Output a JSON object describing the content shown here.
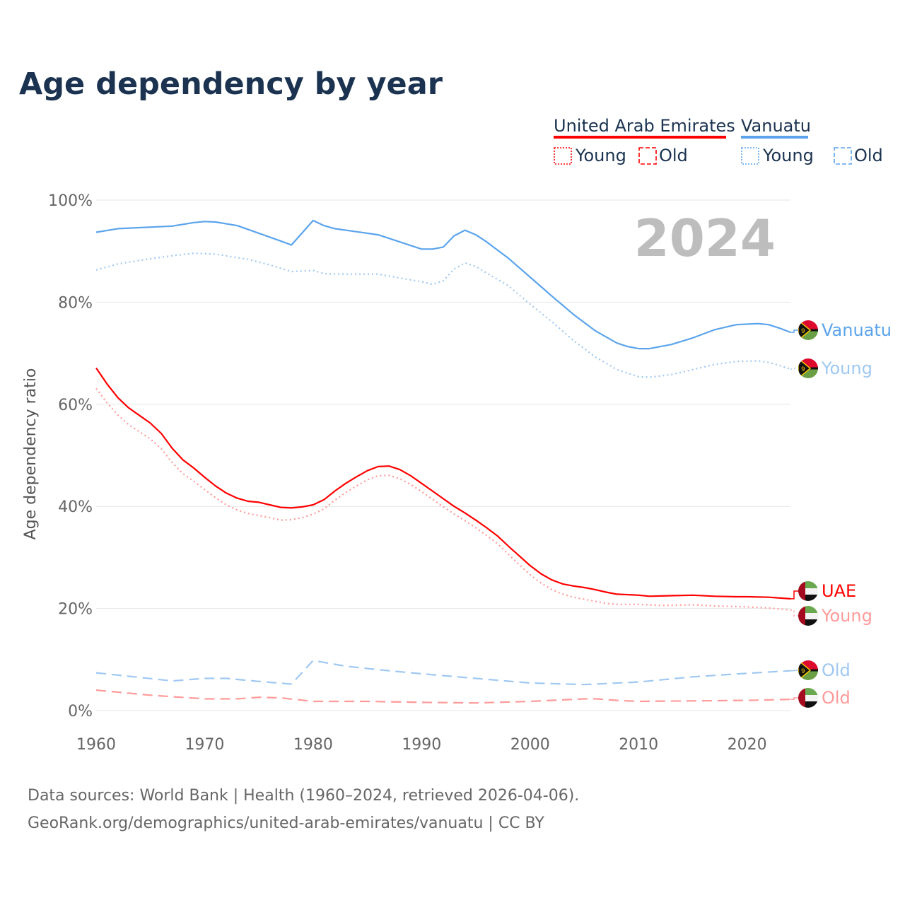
{
  "chart_data": {
    "type": "line",
    "title": "Age dependency by year",
    "ylabel": "Age dependency ratio",
    "xlabel": "",
    "xlim": [
      1960,
      2024
    ],
    "ylim": [
      0,
      100
    ],
    "x_ticks": [
      "1960",
      "1970",
      "1980",
      "1990",
      "2000",
      "2010",
      "2020"
    ],
    "y_ticks": [
      "0%",
      "20%",
      "40%",
      "60%",
      "80%",
      "100%"
    ],
    "year_label": "2024",
    "legend": {
      "placement": "top-right",
      "groups": [
        {
          "name": "United Arab Emirates",
          "color": "#ff0000",
          "young": "Young",
          "old": "Old"
        },
        {
          "name": "Vanuatu",
          "color": "#5ba4ec",
          "young": "Young",
          "old": "Old"
        }
      ]
    },
    "series": [
      {
        "name": "Vanuatu",
        "label": "Vanuatu",
        "style": "solid",
        "color": "#5ba4ec",
        "flag": "vanuatu",
        "points": [
          [
            1960,
            93.7
          ],
          [
            1962,
            94.4
          ],
          [
            1967,
            94.9
          ],
          [
            1969,
            95.6
          ],
          [
            1970,
            95.8
          ],
          [
            1971,
            95.7
          ],
          [
            1973,
            95
          ],
          [
            1975,
            93.5
          ],
          [
            1977,
            92
          ],
          [
            1978,
            91.2
          ],
          [
            1980,
            96
          ],
          [
            1981,
            95
          ],
          [
            1982,
            94.4
          ],
          [
            1986,
            93.2
          ],
          [
            1990,
            90.4
          ],
          [
            1991,
            90.4
          ],
          [
            1992,
            90.8
          ],
          [
            1993,
            93
          ],
          [
            1994,
            94.1
          ],
          [
            1995,
            93.2
          ],
          [
            1996,
            91.8
          ],
          [
            1998,
            88.6
          ],
          [
            2000,
            84.9
          ],
          [
            2002,
            81.2
          ],
          [
            2004,
            77.6
          ],
          [
            2006,
            74.4
          ],
          [
            2008,
            72
          ],
          [
            2009,
            71.3
          ],
          [
            2010,
            70.9
          ],
          [
            2011,
            70.9
          ],
          [
            2013,
            71.7
          ],
          [
            2015,
            73
          ],
          [
            2017,
            74.6
          ],
          [
            2019,
            75.6
          ],
          [
            2021,
            75.8
          ],
          [
            2022,
            75.6
          ],
          [
            2023,
            74.9
          ],
          [
            2024,
            74.1
          ]
        ]
      },
      {
        "name": "Vanuatu Young",
        "label": "Young",
        "style": "dotted",
        "color": "#9fc8f2",
        "flag": "vanuatu",
        "points": [
          [
            1960,
            86.3
          ],
          [
            1962,
            87.5
          ],
          [
            1965,
            88.5
          ],
          [
            1967,
            89.1
          ],
          [
            1969,
            89.6
          ],
          [
            1971,
            89.4
          ],
          [
            1974,
            88.4
          ],
          [
            1976,
            87.3
          ],
          [
            1978,
            86
          ],
          [
            1980,
            86.2
          ],
          [
            1981,
            85.6
          ],
          [
            1982,
            85.5
          ],
          [
            1986,
            85.5
          ],
          [
            1990,
            84
          ],
          [
            1991,
            83.5
          ],
          [
            1992,
            84.2
          ],
          [
            1993,
            86.5
          ],
          [
            1994,
            87.7
          ],
          [
            1995,
            87
          ],
          [
            1996,
            85.7
          ],
          [
            1998,
            83.2
          ],
          [
            2000,
            79.6
          ],
          [
            2002,
            76.2
          ],
          [
            2004,
            72.5
          ],
          [
            2006,
            69.3
          ],
          [
            2008,
            66.8
          ],
          [
            2010,
            65.4
          ],
          [
            2011,
            65.3
          ],
          [
            2013,
            65.8
          ],
          [
            2015,
            66.8
          ],
          [
            2017,
            67.8
          ],
          [
            2019,
            68.4
          ],
          [
            2021,
            68.5
          ],
          [
            2022,
            68.2
          ],
          [
            2023,
            67.6
          ],
          [
            2024,
            66.9
          ]
        ]
      },
      {
        "name": "Vanuatu Old",
        "label": "Old",
        "style": "dashed",
        "color": "#9fc8f2",
        "flag": "vanuatu",
        "points": [
          [
            1960,
            7.4
          ],
          [
            1964,
            6.5
          ],
          [
            1967,
            5.8
          ],
          [
            1970,
            6.3
          ],
          [
            1972,
            6.3
          ],
          [
            1975,
            5.7
          ],
          [
            1978,
            5.2
          ],
          [
            1980,
            9.8
          ],
          [
            1983,
            8.7
          ],
          [
            1986,
            8.0
          ],
          [
            1990,
            7.2
          ],
          [
            1995,
            6.3
          ],
          [
            2000,
            5.4
          ],
          [
            2005,
            5.1
          ],
          [
            2010,
            5.6
          ],
          [
            2015,
            6.6
          ],
          [
            2020,
            7.3
          ],
          [
            2024,
            7.8
          ]
        ]
      },
      {
        "name": "United Arab Emirates",
        "label": "UAE",
        "style": "solid",
        "color": "#ff0000",
        "flag": "uae",
        "points": [
          [
            1960,
            67.1
          ],
          [
            1961,
            64
          ],
          [
            1962,
            61.3
          ],
          [
            1963,
            59.3
          ],
          [
            1964,
            57.8
          ],
          [
            1965,
            56.3
          ],
          [
            1966,
            54.3
          ],
          [
            1967,
            51.4
          ],
          [
            1968,
            49.1
          ],
          [
            1969,
            47.5
          ],
          [
            1970,
            45.7
          ],
          [
            1971,
            44
          ],
          [
            1972,
            42.6
          ],
          [
            1973,
            41.6
          ],
          [
            1974,
            41
          ],
          [
            1975,
            40.8
          ],
          [
            1976,
            40.3
          ],
          [
            1977,
            39.8
          ],
          [
            1978,
            39.7
          ],
          [
            1979,
            39.9
          ],
          [
            1980,
            40.3
          ],
          [
            1981,
            41.3
          ],
          [
            1982,
            43
          ],
          [
            1983,
            44.5
          ],
          [
            1984,
            45.8
          ],
          [
            1985,
            47
          ],
          [
            1986,
            47.8
          ],
          [
            1987,
            47.9
          ],
          [
            1988,
            47.2
          ],
          [
            1989,
            46
          ],
          [
            1990,
            44.5
          ],
          [
            1991,
            43
          ],
          [
            1992,
            41.5
          ],
          [
            1993,
            40
          ],
          [
            1994,
            38.7
          ],
          [
            1995,
            37.3
          ],
          [
            1996,
            35.8
          ],
          [
            1997,
            34.2
          ],
          [
            1998,
            32.2
          ],
          [
            1999,
            30.3
          ],
          [
            2000,
            28.4
          ],
          [
            2001,
            26.8
          ],
          [
            2002,
            25.6
          ],
          [
            2003,
            24.8
          ],
          [
            2004,
            24.4
          ],
          [
            2005,
            24.1
          ],
          [
            2006,
            23.7
          ],
          [
            2007,
            23.2
          ],
          [
            2008,
            22.8
          ],
          [
            2010,
            22.6
          ],
          [
            2011,
            22.4
          ],
          [
            2013,
            22.5
          ],
          [
            2015,
            22.6
          ],
          [
            2017,
            22.4
          ],
          [
            2019,
            22.3
          ],
          [
            2020,
            22.3
          ],
          [
            2022,
            22.2
          ],
          [
            2024,
            21.9
          ]
        ]
      },
      {
        "name": "United Arab Emirates Young",
        "label": "Young",
        "style": "dotted",
        "color": "#ff9a9a",
        "flag": "uae",
        "points": [
          [
            1960,
            63.1
          ],
          [
            1961,
            60.3
          ],
          [
            1962,
            57.9
          ],
          [
            1963,
            56
          ],
          [
            1964,
            54.6
          ],
          [
            1965,
            53.2
          ],
          [
            1966,
            51.3
          ],
          [
            1967,
            48.6
          ],
          [
            1968,
            46.4
          ],
          [
            1969,
            44.9
          ],
          [
            1970,
            43.3
          ],
          [
            1971,
            41.7
          ],
          [
            1972,
            40.3
          ],
          [
            1973,
            39.3
          ],
          [
            1974,
            38.6
          ],
          [
            1975,
            38.2
          ],
          [
            1976,
            37.8
          ],
          [
            1977,
            37.3
          ],
          [
            1978,
            37.4
          ],
          [
            1979,
            37.8
          ],
          [
            1980,
            38.5
          ],
          [
            1981,
            39.5
          ],
          [
            1982,
            41.2
          ],
          [
            1983,
            42.7
          ],
          [
            1984,
            44
          ],
          [
            1985,
            45.2
          ],
          [
            1986,
            46
          ],
          [
            1987,
            46.1
          ],
          [
            1988,
            45.4
          ],
          [
            1989,
            44.3
          ],
          [
            1990,
            42.9
          ],
          [
            1991,
            41.4
          ],
          [
            1992,
            39.9
          ],
          [
            1993,
            38.5
          ],
          [
            1994,
            37.2
          ],
          [
            1995,
            35.8
          ],
          [
            1996,
            34.3
          ],
          [
            1997,
            32.7
          ],
          [
            1998,
            30.6
          ],
          [
            1999,
            28.6
          ],
          [
            2000,
            26.6
          ],
          [
            2001,
            25
          ],
          [
            2002,
            23.7
          ],
          [
            2003,
            22.8
          ],
          [
            2004,
            22.2
          ],
          [
            2005,
            21.8
          ],
          [
            2006,
            21.4
          ],
          [
            2007,
            21
          ],
          [
            2008,
            20.8
          ],
          [
            2010,
            20.8
          ],
          [
            2012,
            20.6
          ],
          [
            2015,
            20.7
          ],
          [
            2017,
            20.5
          ],
          [
            2020,
            20.3
          ],
          [
            2022,
            20.1
          ],
          [
            2024,
            19.7
          ]
        ]
      },
      {
        "name": "United Arab Emirates Old",
        "label": "Old",
        "style": "dashed",
        "color": "#ff9a9a",
        "flag": "uae",
        "points": [
          [
            1960,
            4
          ],
          [
            1965,
            3.0
          ],
          [
            1970,
            2.3
          ],
          [
            1973,
            2.3
          ],
          [
            1975,
            2.6
          ],
          [
            1977,
            2.5
          ],
          [
            1980,
            1.8
          ],
          [
            1985,
            1.8
          ],
          [
            1990,
            1.6
          ],
          [
            1995,
            1.5
          ],
          [
            2000,
            1.8
          ],
          [
            2005,
            2.3
          ],
          [
            2006,
            2.3
          ],
          [
            2008,
            2.0
          ],
          [
            2010,
            1.8
          ],
          [
            2015,
            1.9
          ],
          [
            2020,
            2.0
          ],
          [
            2024,
            2.2
          ]
        ]
      }
    ]
  },
  "footer": {
    "line1": "Data sources: World Bank | Health (1960–2024, retrieved 2026-04-06).",
    "line2": "GeoRank.org/demographics/united-arab-emirates/vanuatu | CC BY"
  }
}
